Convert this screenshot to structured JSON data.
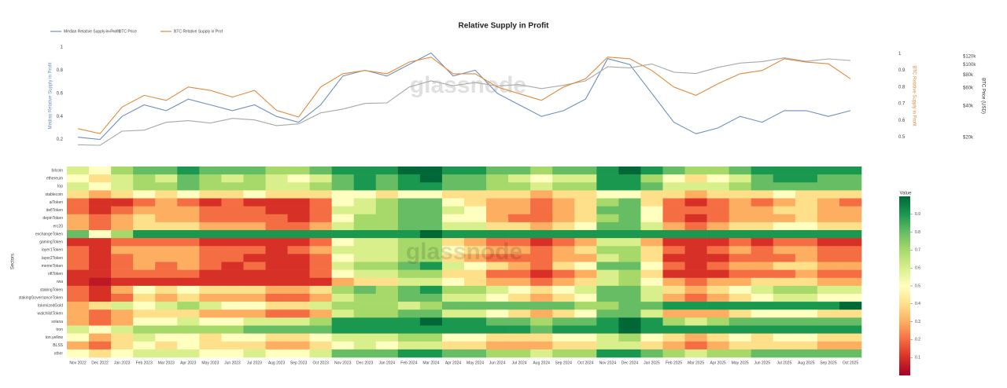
{
  "chart_data": [
    {
      "type": "line",
      "title": "Relative Supply in Profit",
      "watermark": "glassnode",
      "ylabel": "Median Relative Supply in Profit",
      "y2label": "BTC Relative Supply in Profit",
      "y3label": "BTC Price (USD)",
      "ylim": [
        0.15,
        1.0
      ],
      "yticks": [
        0.2,
        0.4,
        0.6,
        0.8,
        1
      ],
      "y2lim": [
        0.45,
        1.04
      ],
      "y2ticks": [
        0.5,
        0.6,
        0.7,
        0.8,
        0.9,
        1
      ],
      "y3lim": [
        16800,
        148000
      ],
      "y3log": true,
      "y3ticks": [
        {
          "value": 20000,
          "label": "$20k"
        },
        {
          "value": 40000,
          "label": "$40k"
        },
        {
          "value": 60000,
          "label": "$60k"
        },
        {
          "value": 80000,
          "label": "$80k"
        },
        {
          "value": 100000,
          "label": "$100k"
        },
        {
          "value": 120000,
          "label": "$120k"
        }
      ],
      "series": [
        {
          "name": "Median Relative Supply in Profit",
          "color": "#6d8fbf",
          "axis": "y",
          "values": [
            0.22,
            0.2,
            0.4,
            0.5,
            0.45,
            0.55,
            0.5,
            0.45,
            0.5,
            0.4,
            0.35,
            0.5,
            0.75,
            0.8,
            0.75,
            0.85,
            0.95,
            0.75,
            0.8,
            0.6,
            0.5,
            0.4,
            0.45,
            0.55,
            0.9,
            0.85,
            0.6,
            0.35,
            0.25,
            0.3,
            0.4,
            0.35,
            0.45,
            0.45,
            0.4,
            0.45
          ]
        },
        {
          "name": "BTC Price",
          "color": "#a8a8a8",
          "axis": "y3",
          "values": [
            17000,
            16800,
            23000,
            23500,
            28000,
            29000,
            27500,
            30500,
            29500,
            26000,
            27000,
            34500,
            37500,
            42500,
            43000,
            61000,
            70000,
            63000,
            67500,
            62500,
            64500,
            59000,
            63500,
            70000,
            96000,
            93500,
            102000,
            85000,
            82500,
            94500,
            104000,
            107500,
            116500,
            108000,
            114000,
            110000
          ]
        },
        {
          "name": "BTC Relative Supply in Prof",
          "color": "#e08a3c",
          "axis": "y2",
          "values": [
            0.55,
            0.52,
            0.68,
            0.75,
            0.72,
            0.8,
            0.78,
            0.74,
            0.78,
            0.66,
            0.62,
            0.8,
            0.88,
            0.9,
            0.88,
            0.95,
            0.98,
            0.88,
            0.88,
            0.8,
            0.76,
            0.72,
            0.8,
            0.85,
            0.98,
            0.97,
            0.9,
            0.8,
            0.75,
            0.82,
            0.88,
            0.9,
            0.97,
            0.95,
            0.94,
            0.85
          ]
        }
      ]
    },
    {
      "type": "heatmap",
      "ylabel": "Sectors",
      "colorbar_title": "Value",
      "watermark": "glassnode",
      "zlim": [
        0,
        1
      ],
      "colorbar_ticks": [
        0.1,
        0.2,
        0.3,
        0.4,
        0.5,
        0.6,
        0.7,
        0.8,
        0.9
      ],
      "colorscale": [
        "#a50026",
        "#d73027",
        "#f46d43",
        "#fdae61",
        "#fee08b",
        "#ffffbf",
        "#d9ef8b",
        "#a6d96a",
        "#66bd63",
        "#1a9850",
        "#006837"
      ],
      "categories": [
        "Nov 2022",
        "Dec 2022",
        "Jan 2023",
        "Feb 2023",
        "Mar 2023",
        "Apr 2023",
        "May 2023",
        "Jun 2023",
        "Jul 2023",
        "Aug 2023",
        "Sep 2023",
        "Oct 2023",
        "Nov 2023",
        "Dec 2023",
        "Jan 2024",
        "Feb 2024",
        "Mar 2024",
        "Apr 2024",
        "May 2024",
        "Jun 2024",
        "Jul 2024",
        "Aug 2024",
        "Sep 2024",
        "Oct 2024",
        "Nov 2024",
        "Dec 2024",
        "Jan 2025",
        "Feb 2025",
        "Mar 2025",
        "Apr 2025",
        "May 2025",
        "Jun 2025",
        "Jul 2025",
        "Aug 2025",
        "Sep 2025",
        "Oct 2025"
      ],
      "rows": [
        "bitcoin",
        "ethereum",
        "top",
        "stablecoin",
        "aiToken",
        "defiToken",
        "depinToken",
        "erc20",
        "exchangeToken",
        "gamingToken",
        "layer1Token",
        "layer2Token",
        "memeToken",
        "nftToken",
        "rwa",
        "stakingToken",
        "stakingGovernanceToken",
        "tokenizedGold",
        "watchlistToken",
        "solana",
        "tron",
        "ton.yellow",
        "BLSS",
        "other"
      ],
      "z": [
        [
          0.6,
          0.5,
          0.7,
          0.8,
          0.8,
          0.9,
          0.8,
          0.8,
          0.8,
          0.7,
          0.7,
          0.8,
          0.9,
          0.9,
          0.9,
          1.0,
          1.0,
          0.9,
          0.9,
          0.8,
          0.8,
          0.7,
          0.8,
          0.8,
          0.9,
          1.0,
          0.9,
          0.8,
          0.7,
          0.7,
          0.8,
          0.9,
          0.9,
          0.9,
          0.9,
          0.9
        ],
        [
          0.5,
          0.4,
          0.6,
          0.7,
          0.6,
          0.8,
          0.7,
          0.6,
          0.7,
          0.6,
          0.5,
          0.6,
          0.8,
          0.9,
          0.8,
          0.9,
          1.0,
          0.8,
          0.8,
          0.7,
          0.6,
          0.5,
          0.6,
          0.6,
          0.9,
          0.9,
          0.7,
          0.5,
          0.4,
          0.5,
          0.6,
          0.8,
          0.9,
          0.9,
          0.8,
          0.8
        ],
        [
          0.6,
          0.5,
          0.6,
          0.7,
          0.7,
          0.8,
          0.7,
          0.7,
          0.7,
          0.6,
          0.6,
          0.7,
          0.8,
          0.9,
          0.8,
          0.9,
          0.9,
          0.8,
          0.8,
          0.7,
          0.7,
          0.6,
          0.7,
          0.7,
          0.9,
          0.9,
          0.8,
          0.6,
          0.6,
          0.6,
          0.7,
          0.8,
          0.8,
          0.8,
          0.8,
          0.8
        ],
        [
          0.4,
          0.3,
          0.4,
          0.5,
          0.4,
          0.5,
          0.4,
          0.4,
          0.5,
          0.4,
          0.4,
          0.4,
          0.5,
          0.5,
          0.4,
          0.5,
          0.5,
          0.4,
          0.4,
          0.4,
          0.4,
          0.3,
          0.4,
          0.4,
          0.5,
          0.5,
          0.4,
          0.4,
          0.3,
          0.4,
          0.4,
          0.4,
          0.5,
          0.4,
          0.4,
          0.4
        ],
        [
          0.2,
          0.1,
          0.1,
          0.2,
          0.3,
          0.2,
          0.1,
          0.2,
          0.1,
          0.1,
          0.1,
          0.2,
          0.5,
          0.6,
          0.7,
          0.8,
          0.8,
          0.5,
          0.4,
          0.3,
          0.3,
          0.2,
          0.3,
          0.4,
          0.7,
          0.8,
          0.4,
          0.2,
          0.1,
          0.2,
          0.3,
          0.2,
          0.3,
          0.4,
          0.3,
          0.2
        ],
        [
          0.2,
          0.1,
          0.2,
          0.3,
          0.3,
          0.3,
          0.2,
          0.2,
          0.2,
          0.1,
          0.1,
          0.2,
          0.6,
          0.6,
          0.7,
          0.8,
          0.8,
          0.6,
          0.5,
          0.3,
          0.3,
          0.2,
          0.3,
          0.4,
          0.8,
          0.8,
          0.5,
          0.2,
          0.2,
          0.2,
          0.3,
          0.3,
          0.4,
          0.4,
          0.3,
          0.3
        ],
        [
          0.3,
          0.2,
          0.3,
          0.4,
          0.3,
          0.3,
          0.2,
          0.2,
          0.2,
          0.2,
          0.1,
          0.2,
          0.5,
          0.7,
          0.7,
          0.8,
          0.8,
          0.5,
          0.5,
          0.3,
          0.2,
          0.2,
          0.3,
          0.4,
          0.7,
          0.8,
          0.5,
          0.2,
          0.1,
          0.2,
          0.3,
          0.3,
          0.3,
          0.4,
          0.3,
          0.3
        ],
        [
          0.3,
          0.2,
          0.3,
          0.4,
          0.4,
          0.4,
          0.3,
          0.3,
          0.3,
          0.2,
          0.2,
          0.3,
          0.6,
          0.7,
          0.7,
          0.8,
          0.8,
          0.6,
          0.6,
          0.4,
          0.4,
          0.3,
          0.4,
          0.5,
          0.8,
          0.8,
          0.6,
          0.3,
          0.2,
          0.3,
          0.4,
          0.4,
          0.5,
          0.5,
          0.4,
          0.4
        ],
        [
          0.8,
          0.5,
          0.7,
          0.9,
          0.9,
          0.9,
          0.9,
          0.9,
          0.9,
          0.9,
          0.9,
          0.9,
          0.9,
          0.9,
          0.9,
          0.9,
          1.0,
          0.9,
          0.9,
          0.9,
          0.9,
          0.9,
          0.9,
          0.9,
          0.9,
          0.9,
          0.9,
          0.9,
          0.9,
          0.9,
          0.9,
          0.9,
          0.9,
          0.9,
          0.9,
          0.9
        ],
        [
          0.1,
          0.1,
          0.2,
          0.2,
          0.2,
          0.2,
          0.1,
          0.1,
          0.1,
          0.1,
          0.1,
          0.2,
          0.5,
          0.6,
          0.6,
          0.7,
          0.7,
          0.4,
          0.3,
          0.2,
          0.2,
          0.1,
          0.2,
          0.3,
          0.6,
          0.6,
          0.3,
          0.1,
          0.1,
          0.1,
          0.2,
          0.1,
          0.2,
          0.2,
          0.1,
          0.1
        ],
        [
          0.2,
          0.1,
          0.3,
          0.3,
          0.3,
          0.3,
          0.2,
          0.2,
          0.2,
          0.1,
          0.2,
          0.3,
          0.6,
          0.6,
          0.6,
          0.7,
          0.7,
          0.5,
          0.4,
          0.3,
          0.3,
          0.2,
          0.3,
          0.4,
          0.7,
          0.7,
          0.4,
          0.2,
          0.1,
          0.2,
          0.3,
          0.2,
          0.3,
          0.3,
          0.2,
          0.2
        ],
        [
          0.2,
          0.1,
          0.2,
          0.3,
          0.3,
          0.3,
          0.2,
          0.2,
          0.1,
          0.1,
          0.1,
          0.2,
          0.5,
          0.6,
          0.6,
          0.7,
          0.7,
          0.4,
          0.3,
          0.2,
          0.2,
          0.2,
          0.3,
          0.3,
          0.6,
          0.7,
          0.4,
          0.1,
          0.1,
          0.1,
          0.2,
          0.2,
          0.2,
          0.3,
          0.2,
          0.2
        ],
        [
          0.2,
          0.1,
          0.2,
          0.3,
          0.2,
          0.3,
          0.2,
          0.1,
          0.2,
          0.1,
          0.1,
          0.2,
          0.6,
          0.7,
          0.7,
          0.8,
          0.9,
          0.6,
          0.5,
          0.4,
          0.3,
          0.2,
          0.4,
          0.5,
          0.8,
          0.8,
          0.5,
          0.2,
          0.1,
          0.2,
          0.3,
          0.3,
          0.4,
          0.4,
          0.3,
          0.3
        ],
        [
          0.1,
          0.1,
          0.2,
          0.2,
          0.2,
          0.2,
          0.1,
          0.1,
          0.1,
          0.1,
          0.1,
          0.2,
          0.5,
          0.6,
          0.6,
          0.7,
          0.7,
          0.4,
          0.4,
          0.2,
          0.2,
          0.1,
          0.2,
          0.3,
          0.6,
          0.7,
          0.4,
          0.1,
          0.1,
          0.1,
          0.2,
          0.2,
          0.2,
          0.3,
          0.2,
          0.2
        ],
        [
          0.1,
          0.05,
          0.1,
          0.1,
          0.1,
          0.1,
          0.1,
          0.1,
          0.1,
          0.1,
          0.1,
          0.1,
          0.3,
          0.4,
          0.4,
          0.6,
          0.6,
          0.5,
          0.4,
          0.3,
          0.3,
          0.2,
          0.3,
          0.4,
          0.6,
          0.7,
          0.5,
          0.3,
          0.2,
          0.3,
          0.3,
          0.4,
          0.4,
          0.4,
          0.3,
          0.3
        ],
        [
          0.2,
          0.1,
          0.3,
          0.5,
          0.4,
          0.5,
          0.4,
          0.4,
          0.4,
          0.3,
          0.3,
          0.4,
          0.7,
          0.8,
          0.7,
          0.8,
          0.9,
          0.7,
          0.7,
          0.6,
          0.5,
          0.4,
          0.5,
          0.6,
          0.8,
          0.8,
          0.6,
          0.4,
          0.3,
          0.4,
          0.5,
          0.6,
          0.7,
          0.7,
          0.6,
          0.6
        ],
        [
          0.2,
          0.1,
          0.2,
          0.4,
          0.3,
          0.4,
          0.3,
          0.3,
          0.3,
          0.2,
          0.2,
          0.3,
          0.6,
          0.7,
          0.7,
          0.8,
          0.8,
          0.6,
          0.6,
          0.5,
          0.4,
          0.3,
          0.4,
          0.5,
          0.8,
          0.8,
          0.6,
          0.3,
          0.2,
          0.3,
          0.4,
          0.5,
          0.6,
          0.6,
          0.5,
          0.5
        ],
        [
          0.3,
          0.4,
          0.6,
          0.5,
          0.6,
          0.7,
          0.6,
          0.5,
          0.5,
          0.4,
          0.4,
          0.6,
          0.7,
          0.7,
          0.7,
          0.6,
          0.7,
          0.8,
          0.8,
          0.8,
          0.8,
          0.8,
          0.8,
          0.7,
          0.7,
          0.8,
          0.8,
          0.9,
          0.9,
          0.9,
          0.9,
          0.9,
          0.9,
          0.9,
          0.9,
          1.0
        ],
        [
          0.3,
          0.2,
          0.3,
          0.4,
          0.4,
          0.4,
          0.3,
          0.3,
          0.3,
          0.2,
          0.2,
          0.3,
          0.6,
          0.7,
          0.7,
          0.8,
          0.8,
          0.6,
          0.6,
          0.5,
          0.4,
          0.3,
          0.4,
          0.5,
          0.8,
          0.8,
          0.6,
          0.3,
          0.3,
          0.3,
          0.4,
          0.5,
          0.5,
          0.5,
          0.4,
          0.4
        ],
        [
          0.3,
          0.2,
          0.3,
          0.5,
          0.5,
          0.6,
          0.5,
          0.5,
          0.6,
          0.6,
          0.6,
          0.7,
          0.9,
          0.9,
          0.9,
          0.9,
          1.0,
          0.9,
          0.9,
          0.8,
          0.8,
          0.7,
          0.8,
          0.8,
          0.9,
          1.0,
          0.9,
          0.7,
          0.6,
          0.7,
          0.8,
          0.8,
          0.8,
          0.8,
          0.8,
          0.8
        ],
        [
          0.6,
          0.5,
          0.6,
          0.7,
          0.7,
          0.7,
          0.7,
          0.7,
          0.8,
          0.8,
          0.8,
          0.8,
          0.9,
          0.9,
          0.9,
          0.9,
          0.9,
          0.9,
          0.9,
          0.9,
          0.9,
          0.8,
          0.9,
          0.9,
          0.9,
          1.0,
          0.9,
          0.9,
          0.9,
          0.9,
          0.9,
          0.9,
          0.9,
          0.9,
          0.9,
          0.9
        ],
        [
          0.5,
          0.3,
          0.4,
          0.6,
          0.5,
          0.5,
          0.4,
          0.5,
          0.5,
          0.4,
          0.4,
          0.5,
          0.6,
          0.6,
          0.6,
          0.7,
          0.7,
          0.5,
          0.5,
          0.4,
          0.4,
          0.4,
          0.5,
          0.5,
          0.6,
          0.7,
          0.5,
          0.4,
          0.3,
          0.4,
          0.5,
          0.4,
          0.5,
          0.5,
          0.4,
          0.4
        ],
        [
          0.3,
          0.2,
          0.4,
          0.5,
          0.4,
          0.5,
          0.4,
          0.4,
          0.4,
          0.3,
          0.3,
          0.4,
          0.5,
          0.6,
          0.5,
          0.6,
          0.6,
          0.4,
          0.4,
          0.3,
          0.3,
          0.3,
          0.4,
          0.4,
          0.6,
          0.6,
          0.4,
          0.3,
          0.2,
          0.3,
          0.4,
          0.4,
          0.4,
          0.4,
          0.3,
          0.3
        ],
        [
          0.5,
          0.4,
          0.5,
          0.6,
          0.6,
          0.6,
          0.5,
          0.5,
          0.6,
          0.5,
          0.5,
          0.6,
          0.8,
          0.8,
          0.8,
          0.9,
          0.9,
          0.8,
          0.8,
          0.7,
          0.7,
          0.6,
          0.7,
          0.7,
          0.9,
          0.9,
          0.8,
          0.7,
          0.6,
          0.7,
          0.7,
          0.8,
          0.8,
          0.8,
          0.8,
          0.8
        ]
      ]
    }
  ]
}
